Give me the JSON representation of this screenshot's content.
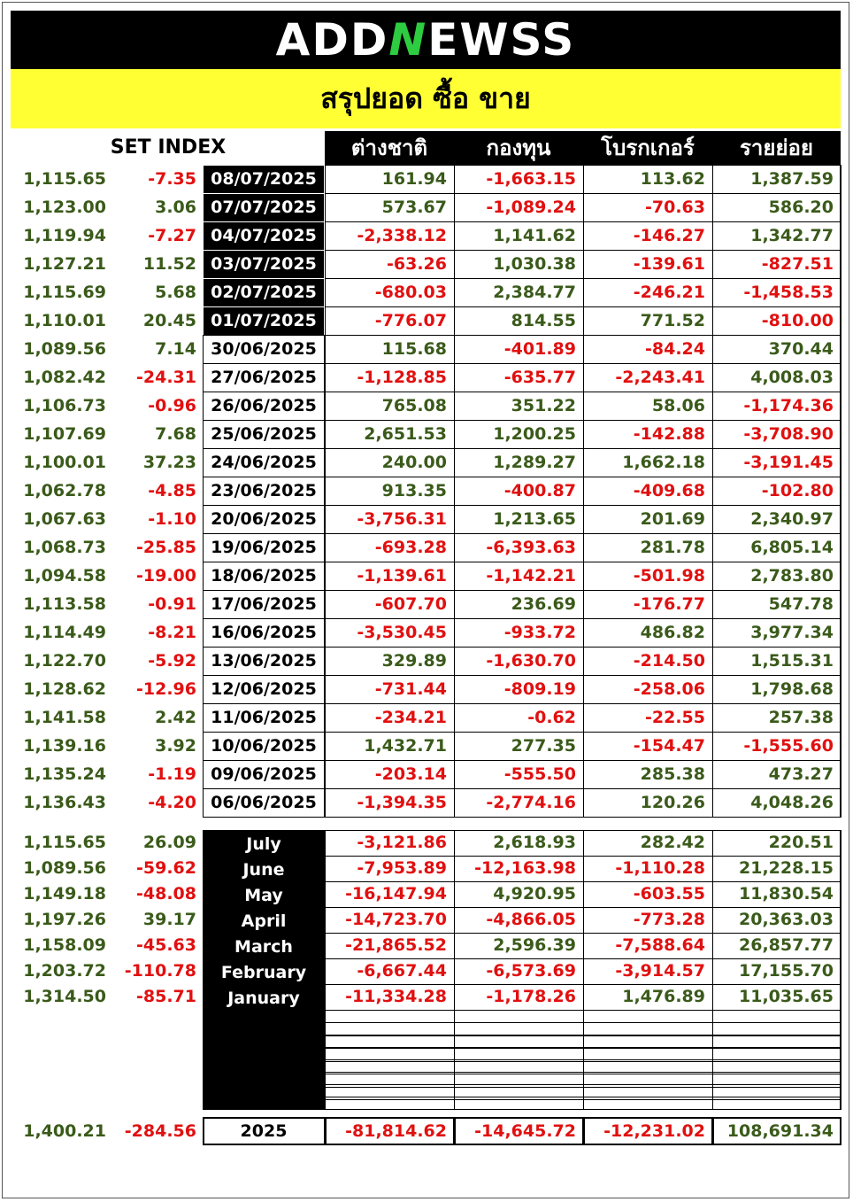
{
  "logo": {
    "pre": "ADD",
    "mark": "N",
    "post": "EWSS"
  },
  "title": "สรุปยอด ซื้อ ขาย",
  "columns": {
    "set_index": "SET INDEX",
    "foreign": "ต่างชาติ",
    "fund": "กองทุน",
    "broker": "โบรกเกอร์",
    "retail": "รายย่อย"
  },
  "daily": [
    {
      "index": "1,115.65",
      "change": "-7.35",
      "date": "08/07/2025",
      "foreign": "161.94",
      "fund": "-1,663.15",
      "broker": "113.62",
      "retail": "1,387.59"
    },
    {
      "index": "1,123.00",
      "change": "3.06",
      "date": "07/07/2025",
      "foreign": "573.67",
      "fund": "-1,089.24",
      "broker": "-70.63",
      "retail": "586.20"
    },
    {
      "index": "1,119.94",
      "change": "-7.27",
      "date": "04/07/2025",
      "foreign": "-2,338.12",
      "fund": "1,141.62",
      "broker": "-146.27",
      "retail": "1,342.77"
    },
    {
      "index": "1,127.21",
      "change": "11.52",
      "date": "03/07/2025",
      "foreign": "-63.26",
      "fund": "1,030.38",
      "broker": "-139.61",
      "retail": "-827.51"
    },
    {
      "index": "1,115.69",
      "change": "5.68",
      "date": "02/07/2025",
      "foreign": "-680.03",
      "fund": "2,384.77",
      "broker": "-246.21",
      "retail": "-1,458.53"
    },
    {
      "index": "1,110.01",
      "change": "20.45",
      "date": "01/07/2025",
      "foreign": "-776.07",
      "fund": "814.55",
      "broker": "771.52",
      "retail": "-810.00"
    },
    {
      "index": "1,089.56",
      "change": "7.14",
      "date": "30/06/2025",
      "foreign": "115.68",
      "fund": "-401.89",
      "broker": "-84.24",
      "retail": "370.44"
    },
    {
      "index": "1,082.42",
      "change": "-24.31",
      "date": "27/06/2025",
      "foreign": "-1,128.85",
      "fund": "-635.77",
      "broker": "-2,243.41",
      "retail": "4,008.03"
    },
    {
      "index": "1,106.73",
      "change": "-0.96",
      "date": "26/06/2025",
      "foreign": "765.08",
      "fund": "351.22",
      "broker": "58.06",
      "retail": "-1,174.36"
    },
    {
      "index": "1,107.69",
      "change": "7.68",
      "date": "25/06/2025",
      "foreign": "2,651.53",
      "fund": "1,200.25",
      "broker": "-142.88",
      "retail": "-3,708.90"
    },
    {
      "index": "1,100.01",
      "change": "37.23",
      "date": "24/06/2025",
      "foreign": "240.00",
      "fund": "1,289.27",
      "broker": "1,662.18",
      "retail": "-3,191.45"
    },
    {
      "index": "1,062.78",
      "change": "-4.85",
      "date": "23/06/2025",
      "foreign": "913.35",
      "fund": "-400.87",
      "broker": "-409.68",
      "retail": "-102.80"
    },
    {
      "index": "1,067.63",
      "change": "-1.10",
      "date": "20/06/2025",
      "foreign": "-3,756.31",
      "fund": "1,213.65",
      "broker": "201.69",
      "retail": "2,340.97"
    },
    {
      "index": "1,068.73",
      "change": "-25.85",
      "date": "19/06/2025",
      "foreign": "-693.28",
      "fund": "-6,393.63",
      "broker": "281.78",
      "retail": "6,805.14"
    },
    {
      "index": "1,094.58",
      "change": "-19.00",
      "date": "18/06/2025",
      "foreign": "-1,139.61",
      "fund": "-1,142.21",
      "broker": "-501.98",
      "retail": "2,783.80"
    },
    {
      "index": "1,113.58",
      "change": "-0.91",
      "date": "17/06/2025",
      "foreign": "-607.70",
      "fund": "236.69",
      "broker": "-176.77",
      "retail": "547.78"
    },
    {
      "index": "1,114.49",
      "change": "-8.21",
      "date": "16/06/2025",
      "foreign": "-3,530.45",
      "fund": "-933.72",
      "broker": "486.82",
      "retail": "3,977.34"
    },
    {
      "index": "1,122.70",
      "change": "-5.92",
      "date": "13/06/2025",
      "foreign": "329.89",
      "fund": "-1,630.70",
      "broker": "-214.50",
      "retail": "1,515.31"
    },
    {
      "index": "1,128.62",
      "change": "-12.96",
      "date": "12/06/2025",
      "foreign": "-731.44",
      "fund": "-809.19",
      "broker": "-258.06",
      "retail": "1,798.68"
    },
    {
      "index": "1,141.58",
      "change": "2.42",
      "date": "11/06/2025",
      "foreign": "-234.21",
      "fund": "-0.62",
      "broker": "-22.55",
      "retail": "257.38"
    },
    {
      "index": "1,139.16",
      "change": "3.92",
      "date": "10/06/2025",
      "foreign": "1,432.71",
      "fund": "277.35",
      "broker": "-154.47",
      "retail": "-1,555.60"
    },
    {
      "index": "1,135.24",
      "change": "-1.19",
      "date": "09/06/2025",
      "foreign": "-203.14",
      "fund": "-555.50",
      "broker": "285.38",
      "retail": "473.27"
    },
    {
      "index": "1,136.43",
      "change": "-4.20",
      "date": "06/06/2025",
      "foreign": "-1,394.35",
      "fund": "-2,774.16",
      "broker": "120.26",
      "retail": "4,048.26"
    }
  ],
  "monthly": [
    {
      "index": "1,115.65",
      "change": "26.09",
      "month": "July",
      "foreign": "-3,121.86",
      "fund": "2,618.93",
      "broker": "282.42",
      "retail": "220.51"
    },
    {
      "index": "1,089.56",
      "change": "-59.62",
      "month": "June",
      "foreign": "-7,953.89",
      "fund": "-12,163.98",
      "broker": "-1,110.28",
      "retail": "21,228.15"
    },
    {
      "index": "1,149.18",
      "change": "-48.08",
      "month": "May",
      "foreign": "-16,147.94",
      "fund": "4,920.95",
      "broker": "-603.55",
      "retail": "11,830.54"
    },
    {
      "index": "1,197.26",
      "change": "39.17",
      "month": "April",
      "foreign": "-14,723.70",
      "fund": "-4,866.05",
      "broker": "-773.28",
      "retail": "20,363.03"
    },
    {
      "index": "1,158.09",
      "change": "-45.63",
      "month": "March",
      "foreign": "-21,865.52",
      "fund": "2,596.39",
      "broker": "-7,588.64",
      "retail": "26,857.77"
    },
    {
      "index": "1,203.72",
      "change": "-110.78",
      "month": "February",
      "foreign": "-6,667.44",
      "fund": "-6,573.69",
      "broker": "-3,914.57",
      "retail": "17,155.70"
    },
    {
      "index": "1,314.50",
      "change": "-85.71",
      "month": "January",
      "foreign": "-11,334.28",
      "fund": "-1,178.26",
      "broker": "1,476.89",
      "retail": "11,035.65"
    }
  ],
  "yearly": {
    "index": "1,400.21",
    "change": "-284.56",
    "year": "2025",
    "foreign": "-81,814.62",
    "fund": "-14,645.72",
    "broker": "-12,231.02",
    "retail": "108,691.34"
  }
}
